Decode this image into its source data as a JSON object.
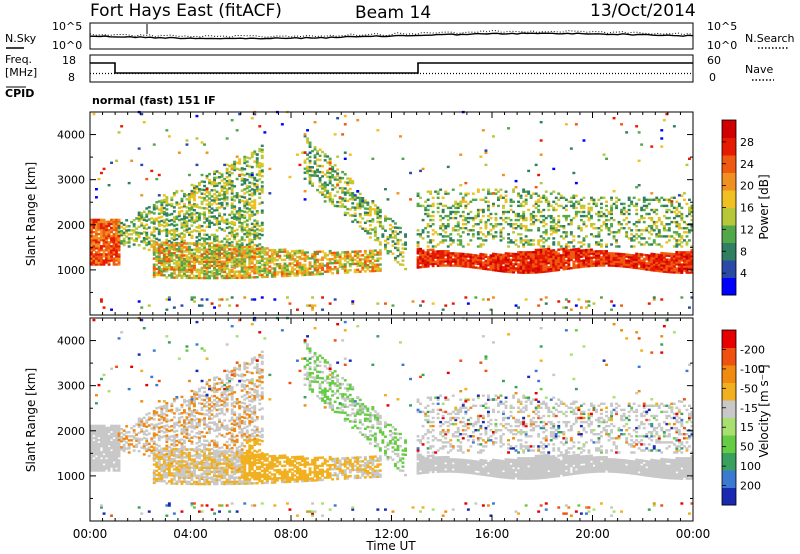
{
  "header": {
    "radar": "Fort Hays East (fitACF)",
    "beam": "Beam 14",
    "date": "13/Oct/2014"
  },
  "noise_panel": {
    "left_label": "N.Sky",
    "right_label": "N.Search",
    "left_ticks": [
      "10^5",
      "10^0"
    ],
    "right_ticks": [
      "10^5",
      "10^0"
    ]
  },
  "freq_panel": {
    "left_label_line1": "Freq.",
    "left_label_line2": "[MHz]",
    "right_label": "Nave",
    "left_ticks": [
      "18",
      "8"
    ],
    "right_ticks": [
      "60",
      "0"
    ],
    "cpid_label": "CPID",
    "cpid_text": "normal (fast) 151 IF"
  },
  "chart_data": [
    {
      "type": "heatmap",
      "name": "power",
      "ylabel": "Slant Range [km]",
      "y_ticks": [
        1000,
        2000,
        3000,
        4000
      ],
      "ylim": [
        0,
        4500
      ],
      "xlim_hours": [
        0,
        24
      ],
      "colorbar": {
        "label": "Power [dB]",
        "ticks": [
          "4",
          "8",
          "12",
          "16",
          "20",
          "24",
          "28"
        ],
        "colors": [
          "#0000ff",
          "#2a4aa8",
          "#2f7f60",
          "#52a848",
          "#b6c83a",
          "#f0c020",
          "#f09020",
          "#f05a10",
          "#e61a00",
          "#d00000"
        ]
      }
    },
    {
      "type": "heatmap",
      "name": "velocity",
      "ylabel": "Slant Range [km]",
      "y_ticks": [
        1000,
        2000,
        3000,
        4000
      ],
      "ylim": [
        0,
        4500
      ],
      "xlim_hours": [
        0,
        24
      ],
      "colorbar": {
        "label": "Velocity [m s⁻¹]",
        "ticks": [
          "200",
          "100",
          "50",
          "15",
          "-15",
          "-50",
          "-100",
          "-200"
        ],
        "colors": [
          "#1a2ab0",
          "#3c7ad2",
          "#3aa060",
          "#66cc44",
          "#a8e070",
          "#c8c8c8",
          "#f0b020",
          "#f08a10",
          "#f05010",
          "#e60000"
        ]
      }
    }
  ],
  "x_axis": {
    "ticks": [
      "00:00",
      "04:00",
      "08:00",
      "12:00",
      "16:00",
      "20:00",
      "00:00"
    ],
    "label": "Time UT"
  }
}
